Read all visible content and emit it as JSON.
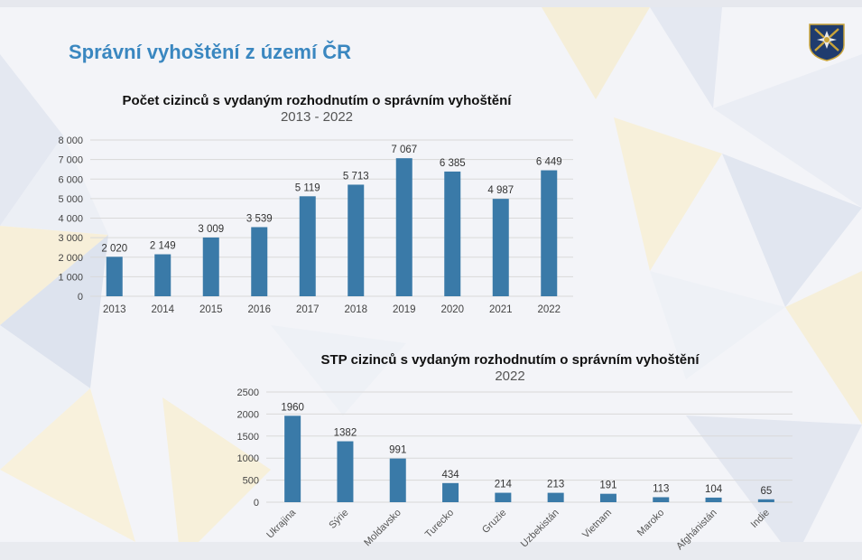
{
  "slide": {
    "title": "Správní vyhoštění z území ČR"
  },
  "logo": {
    "icon": "police-emblem-icon"
  },
  "chart_data": [
    {
      "type": "bar",
      "title": "Počet cizinců s vydaným rozhodnutím o správním vyhoštění",
      "subtitle": "2013 - 2022",
      "categories": [
        "2013",
        "2014",
        "2015",
        "2016",
        "2017",
        "2018",
        "2019",
        "2020",
        "2021",
        "2022"
      ],
      "values": [
        2020,
        2149,
        3009,
        3539,
        5119,
        5713,
        7067,
        6385,
        4987,
        6449
      ],
      "value_labels": [
        "2 020",
        "2 149",
        "3 009",
        "3 539",
        "5 119",
        "5 713",
        "7 067",
        "6 385",
        "4 987",
        "6 449"
      ],
      "yticks": [
        "0",
        "1 000",
        "2 000",
        "3 000",
        "4 000",
        "5 000",
        "6 000",
        "7 000",
        "8 000"
      ],
      "ylim": [
        0,
        8000
      ],
      "grid": true,
      "bar_color": "#3a7aa8"
    },
    {
      "type": "bar",
      "title": "STP cizinců s vydaným rozhodnutím o správním vyhoštění",
      "subtitle": "2022",
      "categories": [
        "Ukrajina",
        "Sýrie",
        "Moldavsko",
        "Turecko",
        "Gruzie",
        "Uzbekistán",
        "Vietnam",
        "Maroko",
        "Afghánistán",
        "Indie"
      ],
      "values": [
        1960,
        1382,
        991,
        434,
        214,
        213,
        191,
        113,
        104,
        65
      ],
      "value_labels": [
        "1960",
        "1382",
        "991",
        "434",
        "214",
        "213",
        "191",
        "113",
        "104",
        "65"
      ],
      "yticks": [
        "0",
        "500",
        "1000",
        "1500",
        "2000",
        "2500"
      ],
      "ylim": [
        0,
        2500
      ],
      "grid": true,
      "bar_color": "#3a7aa8"
    }
  ]
}
